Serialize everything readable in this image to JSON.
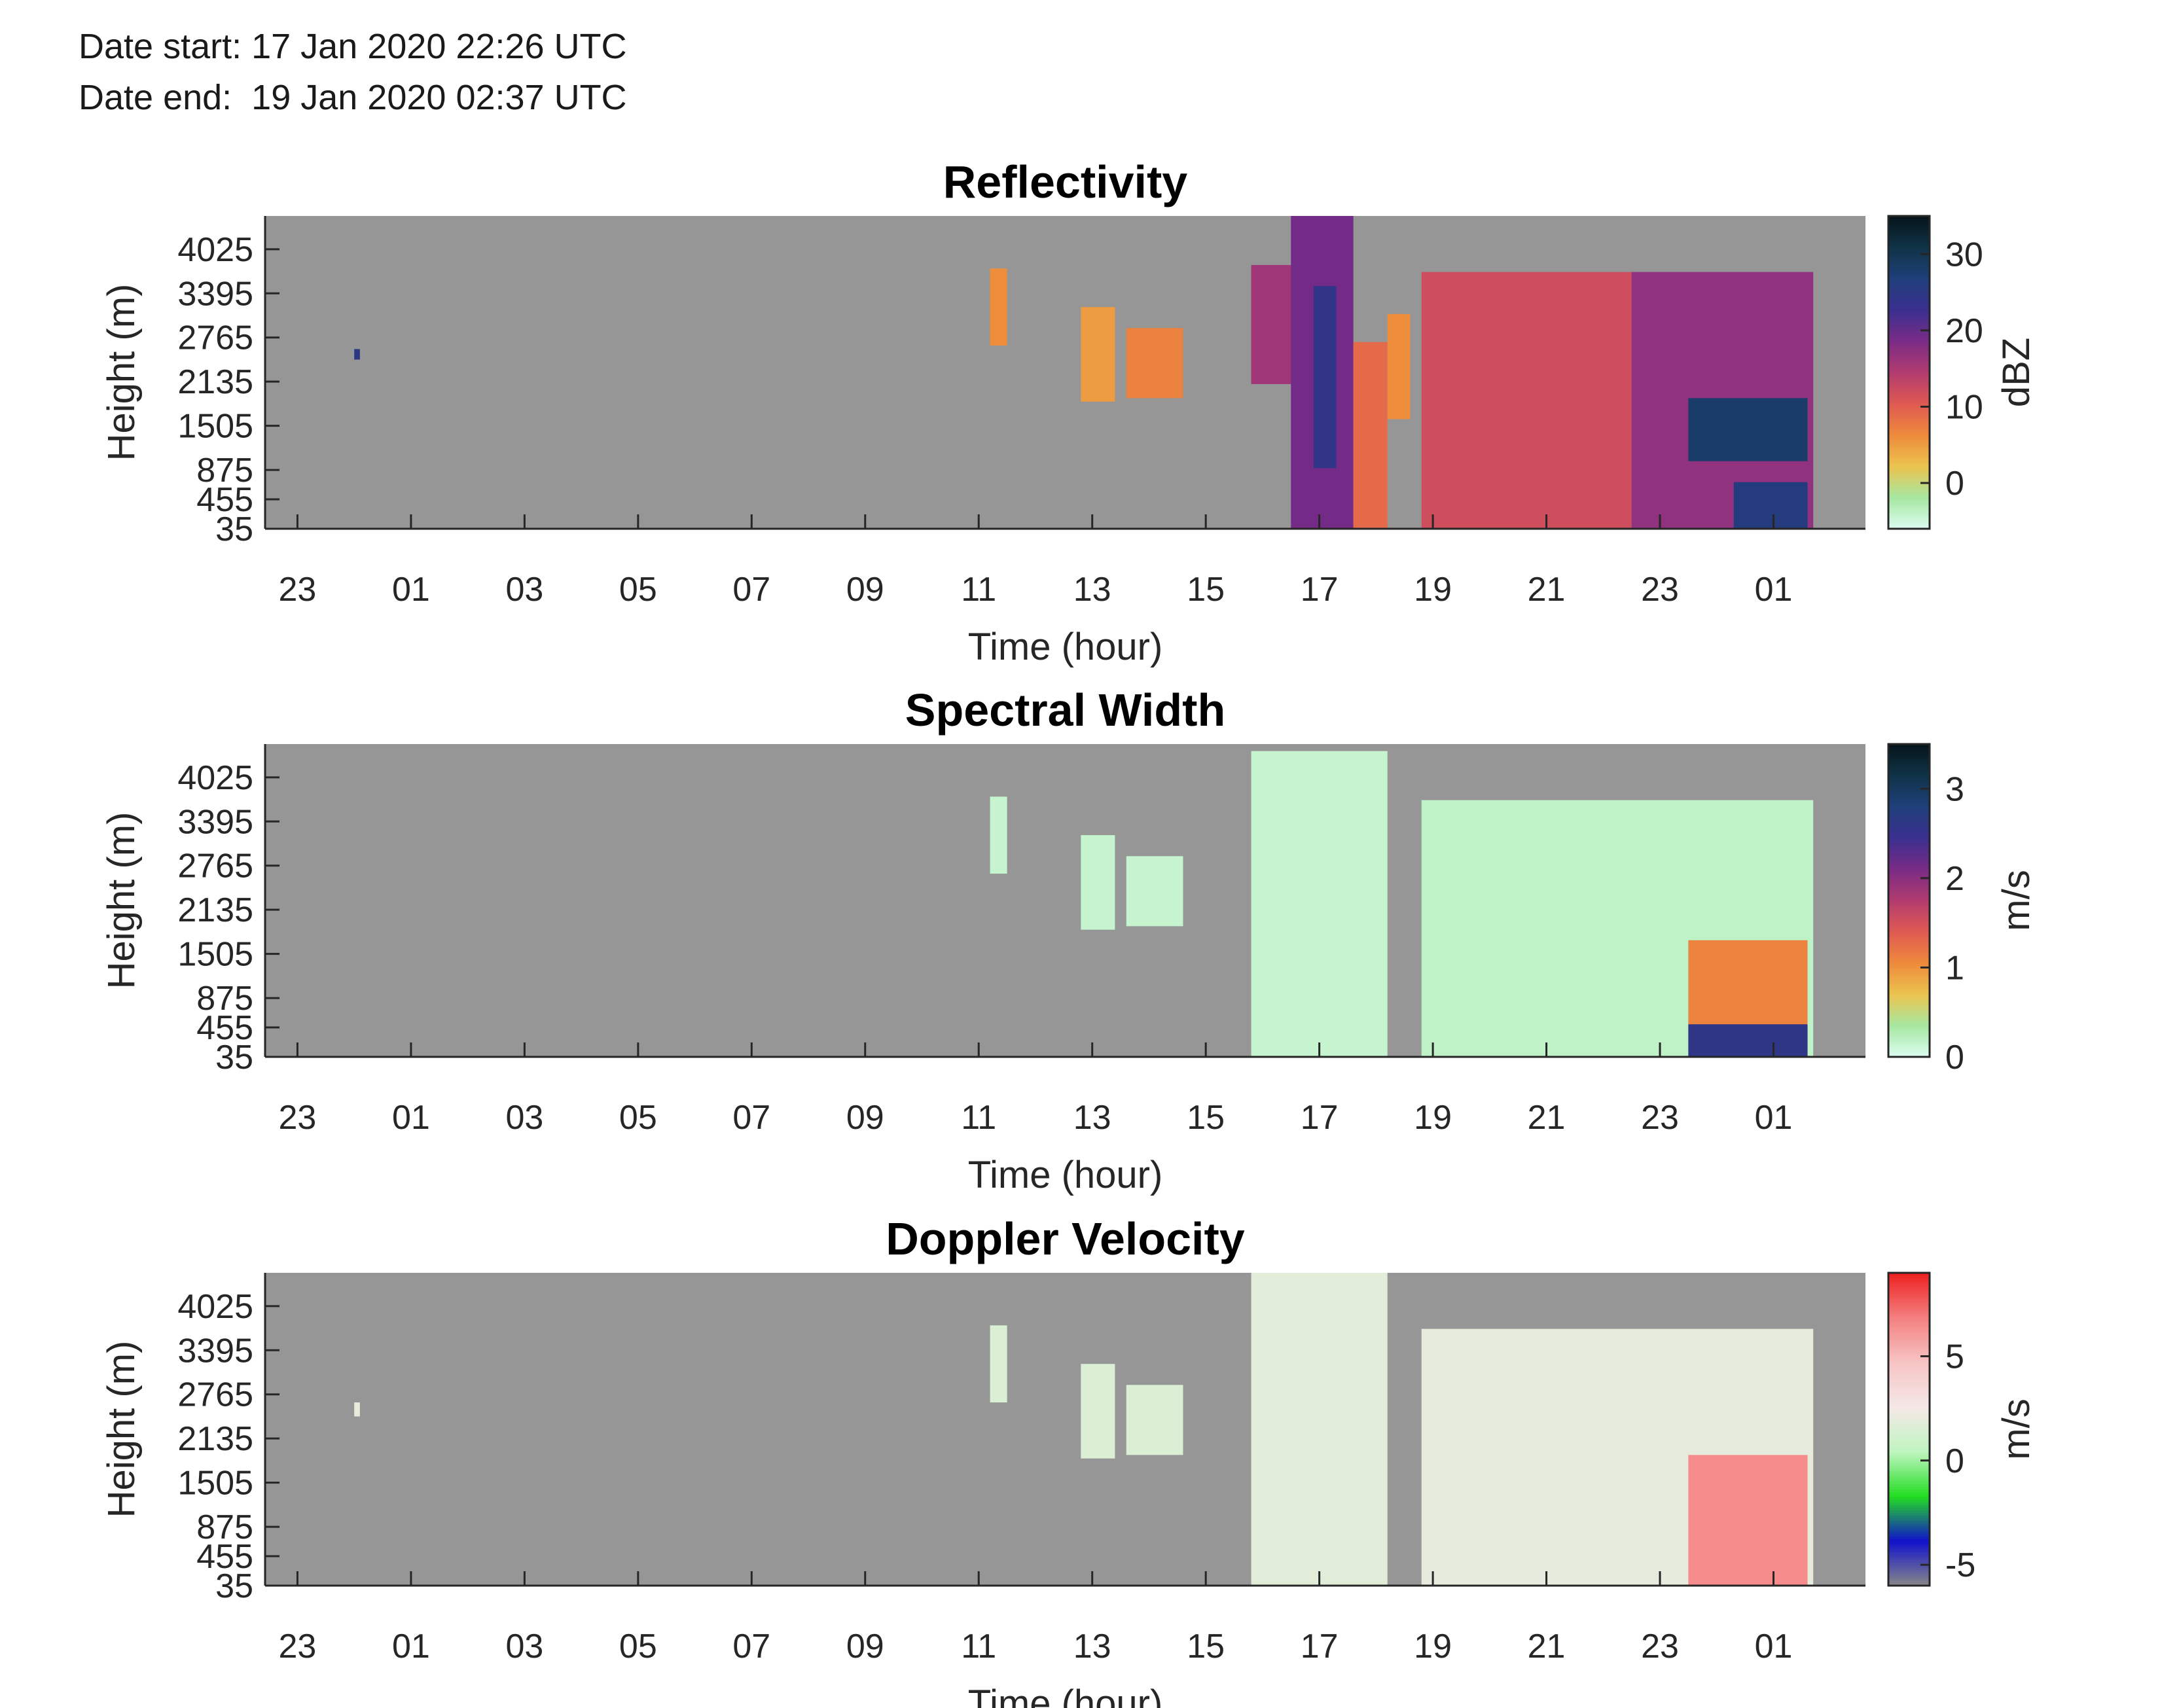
{
  "header": {
    "date_start": "Date start: 17 Jan 2020 22:26 UTC",
    "date_end": "Date end:  19 Jan 2020 02:37 UTC"
  },
  "colors": {
    "missing": "#969696",
    "axis": "#262626"
  },
  "chart_data": [
    {
      "type": "heatmap",
      "title": "Reflectivity",
      "xlabel": "Time (hour)",
      "ylabel": "Height (m)",
      "x_ticks": [
        "23",
        "01",
        "03",
        "05",
        "07",
        "09",
        "11",
        "13",
        "15",
        "17",
        "19",
        "21",
        "23",
        "01"
      ],
      "x_range_hours": [
        22.43,
        50.62
      ],
      "x_tick_hours": [
        23,
        25,
        27,
        29,
        31,
        33,
        35,
        37,
        39,
        41,
        43,
        45,
        47,
        49
      ],
      "y_ticks": [
        35,
        455,
        875,
        1505,
        2135,
        2765,
        3395,
        4025
      ],
      "y_range_m": [
        35,
        4500
      ],
      "colorbar": {
        "label": "dBZ",
        "ticks": [
          0,
          10,
          20,
          30
        ],
        "range": [
          -6,
          35
        ],
        "stops": [
          "#dcfdf2",
          "#a6e7a1",
          "#ecc44f",
          "#ee8a3c",
          "#e05a52",
          "#b23c6f",
          "#7a2b86",
          "#3b2f8f",
          "#1f3f7a",
          "#0f3448",
          "#06141a"
        ]
      },
      "echoes": [
        {
          "t0": 24.0,
          "t1": 24.1,
          "h0": 2450,
          "h1": 2600,
          "v": 25
        },
        {
          "t0": 35.2,
          "t1": 35.5,
          "h0": 2650,
          "h1": 3750,
          "v": 6
        },
        {
          "t0": 36.8,
          "t1": 37.4,
          "h0": 1850,
          "h1": 3200,
          "v": 5
        },
        {
          "t0": 37.6,
          "t1": 38.6,
          "h0": 1900,
          "h1": 2900,
          "v": 7
        },
        {
          "t0": 39.8,
          "t1": 40.6,
          "h0": 2100,
          "h1": 3800,
          "v": 16
        },
        {
          "t0": 40.5,
          "t1": 41.6,
          "h0": 35,
          "h1": 4500,
          "v": 19
        },
        {
          "t0": 40.9,
          "t1": 41.3,
          "h0": 900,
          "h1": 3500,
          "v": 24
        },
        {
          "t0": 41.6,
          "t1": 42.2,
          "h0": 35,
          "h1": 2700,
          "v": 9
        },
        {
          "t0": 42.2,
          "t1": 42.6,
          "h0": 1600,
          "h1": 3100,
          "v": 6
        },
        {
          "t0": 42.8,
          "t1": 46.5,
          "h0": 35,
          "h1": 3700,
          "v": 12
        },
        {
          "t0": 46.5,
          "t1": 49.7,
          "h0": 35,
          "h1": 3700,
          "v": 17
        },
        {
          "t0": 47.5,
          "t1": 49.6,
          "h0": 1000,
          "h1": 1900,
          "v": 28
        },
        {
          "t0": 48.3,
          "t1": 49.6,
          "h0": 35,
          "h1": 700,
          "v": 26
        }
      ]
    },
    {
      "type": "heatmap",
      "title": "Spectral Width",
      "xlabel": "Time (hour)",
      "ylabel": "Height (m)",
      "x_ticks": [
        "23",
        "01",
        "03",
        "05",
        "07",
        "09",
        "11",
        "13",
        "15",
        "17",
        "19",
        "21",
        "23",
        "01"
      ],
      "x_range_hours": [
        22.43,
        50.62
      ],
      "x_tick_hours": [
        23,
        25,
        27,
        29,
        31,
        33,
        35,
        37,
        39,
        41,
        43,
        45,
        47,
        49
      ],
      "y_ticks": [
        35,
        455,
        875,
        1505,
        2135,
        2765,
        3395,
        4025
      ],
      "y_range_m": [
        35,
        4500
      ],
      "colorbar": {
        "label": "m/s",
        "ticks": [
          0,
          1,
          2,
          3
        ],
        "range": [
          0,
          3.5
        ],
        "stops": [
          "#dcfdf2",
          "#a6e7a1",
          "#ecc44f",
          "#ee8a3c",
          "#e05a52",
          "#b23c6f",
          "#7a2b86",
          "#3b2f8f",
          "#1f3f7a",
          "#0f3448",
          "#06141a"
        ]
      },
      "echoes": [
        {
          "t0": 35.2,
          "t1": 35.5,
          "h0": 2650,
          "h1": 3750,
          "v": 0.15
        },
        {
          "t0": 36.8,
          "t1": 37.4,
          "h0": 1850,
          "h1": 3200,
          "v": 0.15
        },
        {
          "t0": 37.6,
          "t1": 38.6,
          "h0": 1900,
          "h1": 2900,
          "v": 0.15
        },
        {
          "t0": 39.8,
          "t1": 42.2,
          "h0": 35,
          "h1": 4400,
          "v": 0.15
        },
        {
          "t0": 42.8,
          "t1": 49.7,
          "h0": 35,
          "h1": 3700,
          "v": 0.18
        },
        {
          "t0": 47.5,
          "t1": 49.6,
          "h0": 35,
          "h1": 1700,
          "v": 1.1
        },
        {
          "t0": 47.5,
          "t1": 49.6,
          "h0": 35,
          "h1": 500,
          "v": 2.6
        }
      ]
    },
    {
      "type": "heatmap",
      "title": "Doppler Velocity",
      "xlabel": "Time (hour)",
      "ylabel": "Height (m)",
      "x_ticks": [
        "23",
        "01",
        "03",
        "05",
        "07",
        "09",
        "11",
        "13",
        "15",
        "17",
        "19",
        "21",
        "23",
        "01"
      ],
      "x_range_hours": [
        22.43,
        50.62
      ],
      "x_tick_hours": [
        23,
        25,
        27,
        29,
        31,
        33,
        35,
        37,
        39,
        41,
        43,
        45,
        47,
        49
      ],
      "y_ticks": [
        35,
        455,
        875,
        1505,
        2135,
        2765,
        3395,
        4025
      ],
      "y_range_m": [
        35,
        4500
      ],
      "colorbar": {
        "label": "m/s",
        "ticks": [
          -5,
          0,
          5
        ],
        "range": [
          -6,
          9
        ],
        "stops": [
          "#888888",
          "#1212cc",
          "#22dd22",
          "#bff5bf",
          "#f5e8e8",
          "#f7c4c4",
          "#f48080",
          "#ee2020"
        ]
      },
      "echoes": [
        {
          "t0": 24.0,
          "t1": 24.1,
          "h0": 2450,
          "h1": 2650,
          "v": 2
        },
        {
          "t0": 35.2,
          "t1": 35.5,
          "h0": 2650,
          "h1": 3750,
          "v": 1.5
        },
        {
          "t0": 36.8,
          "t1": 37.4,
          "h0": 1850,
          "h1": 3200,
          "v": 1.5
        },
        {
          "t0": 37.6,
          "t1": 38.6,
          "h0": 1900,
          "h1": 2900,
          "v": 1.5
        },
        {
          "t0": 39.8,
          "t1": 42.2,
          "h0": 35,
          "h1": 4500,
          "v": 1.8
        },
        {
          "t0": 42.8,
          "t1": 49.7,
          "h0": 35,
          "h1": 3700,
          "v": 2.0
        },
        {
          "t0": 47.5,
          "t1": 49.6,
          "h0": 35,
          "h1": 1900,
          "v": 6.5
        }
      ]
    }
  ]
}
